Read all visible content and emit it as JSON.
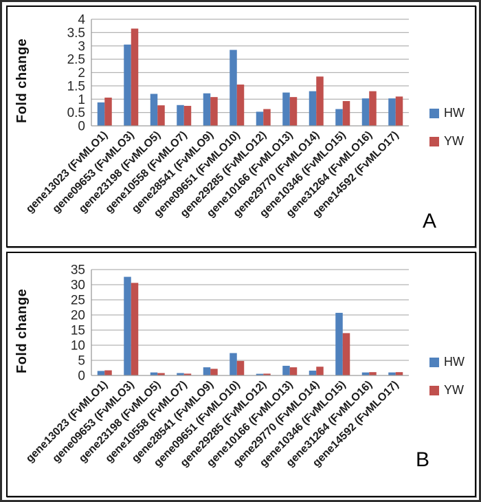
{
  "figure": {
    "panels": [
      {
        "label": "A"
      },
      {
        "label": "B"
      }
    ]
  },
  "colors": {
    "hw_series": "#4F81BD",
    "yw_series": "#C0504D",
    "gridline": "#b3b3b3",
    "axis": "#9c9c9c"
  },
  "chart_data": [
    {
      "type": "bar",
      "title": "",
      "ylabel": "Fold change",
      "xlabel": "",
      "ylim": [
        0,
        4
      ],
      "ytick": 0.5,
      "grid": true,
      "legend_position": "right",
      "categories": [
        "gene13023 (FvMLO1)",
        "gene09653 (FvMLO3)",
        "gene23198 (FvMLO5)",
        "gene10558 (FvMLO7)",
        "gene28541 (FvMLO9)",
        "gene09651 (FvMLO10)",
        "gene29285 (FvMLO12)",
        "gene10166 (FvMLO13)",
        "gene29770 (FvMLO14)",
        "gene10346 (FvMLO15)",
        "gene31264 (FvMLO16)",
        "gene14592 (FvMLO17)"
      ],
      "series": [
        {
          "name": "HW",
          "color": "#4F81BD",
          "values": [
            0.88,
            3.05,
            1.2,
            0.78,
            1.22,
            2.85,
            0.53,
            1.25,
            1.3,
            0.63,
            1.03,
            1.03
          ]
        },
        {
          "name": "YW",
          "color": "#C0504D",
          "values": [
            1.06,
            3.65,
            0.77,
            0.75,
            1.08,
            1.55,
            0.63,
            1.08,
            1.85,
            0.93,
            1.3,
            1.1
          ]
        }
      ]
    },
    {
      "type": "bar",
      "title": "",
      "ylabel": "Fold change",
      "xlabel": "",
      "ylim": [
        0,
        35
      ],
      "ytick": 5,
      "grid": true,
      "legend_position": "right",
      "categories": [
        "gene13023 (FvMLO1)",
        "gene09653 (FvMLO3)",
        "gene23198 (FvMLO5)",
        "gene10558 (FvMLO7)",
        "gene28541 (FvMLO9)",
        "gene09651 (FvMLO10)",
        "gene29285 (FvMLO12)",
        "gene10166 (FvMLO13)",
        "gene29770 (FvMLO14)",
        "gene10346 (FvMLO15)",
        "gene31264 (FvMLO16)",
        "gene14592 (FvMLO17)"
      ],
      "series": [
        {
          "name": "HW",
          "color": "#4F81BD",
          "values": [
            1.5,
            32.6,
            1.0,
            0.8,
            2.7,
            7.4,
            0.55,
            3.2,
            1.6,
            20.7,
            1.0,
            1.0
          ]
        },
        {
          "name": "YW",
          "color": "#C0504D",
          "values": [
            1.7,
            30.6,
            0.8,
            0.6,
            2.2,
            4.8,
            0.6,
            2.7,
            2.9,
            14.0,
            1.1,
            1.1
          ]
        }
      ]
    }
  ]
}
